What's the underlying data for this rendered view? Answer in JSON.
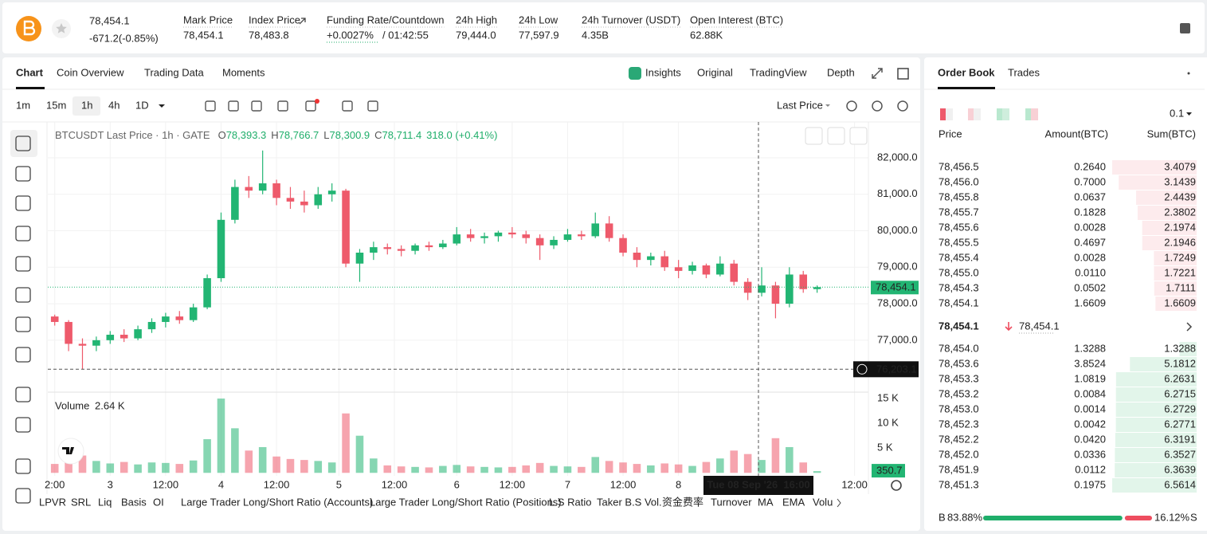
{
  "header": {
    "price": "78,454.1",
    "change": "-671.2(-0.85%)",
    "stats": [
      {
        "label": "Mark Price",
        "value": "78,454.1"
      },
      {
        "label": "Index Price",
        "value": "78,483.8"
      },
      {
        "label": "Funding Rate/Countdown",
        "value": "+0.0027%",
        "value2": "/ 01:42:55"
      },
      {
        "label": "24h High",
        "value": "79,444.0"
      },
      {
        "label": "24h Low",
        "value": "77,597.9"
      },
      {
        "label": "24h Turnover (USDT)",
        "value": "4.35B"
      },
      {
        "label": "Open Interest (BTC)",
        "value": "62.88K"
      }
    ]
  },
  "tabs": [
    "Chart",
    "Coin Overview",
    "Trading Data",
    "Moments"
  ],
  "view_tabs": [
    "Insights",
    "Original",
    "TradingView",
    "Depth"
  ],
  "intervals": [
    "1m",
    "15m",
    "1h",
    "4h",
    "1D"
  ],
  "price_type": "Last Price",
  "legend": {
    "title": "BTCUSDT Last Price · 1h · GATE",
    "o_label": "O",
    "o": "78,393.3",
    "h_label": "H",
    "h": "78,766.7",
    "l_label": "L",
    "l": "78,300.9",
    "c_label": "C",
    "c": "78,711.4",
    "change": "318.0 (+0.41%)"
  },
  "chart_data": {
    "type": "candlestick",
    "xlim": [
      -0.5,
      58.7
    ],
    "xticks": [
      {
        "value": 0,
        "label": "2:00"
      },
      {
        "value": 4,
        "label": "3"
      },
      {
        "value": 8,
        "label": "12:00"
      },
      {
        "value": 12,
        "label": "4"
      },
      {
        "value": 16,
        "label": "12:00"
      },
      {
        "value": 20.5,
        "label": "5"
      },
      {
        "value": 24.5,
        "label": "12:00"
      },
      {
        "value": 29,
        "label": "6"
      },
      {
        "value": 33,
        "label": "12:00"
      },
      {
        "value": 37,
        "label": "7"
      },
      {
        "value": 41,
        "label": "12:00"
      },
      {
        "value": 45,
        "label": "8"
      },
      {
        "value": 57.7,
        "label": "12:00"
      }
    ],
    "ylim": [
      75620,
      82830
    ],
    "yticks": [
      {
        "value": 77000,
        "label": "77,000.0"
      },
      {
        "value": 78000,
        "label": "78,000.0"
      },
      {
        "value": 79000,
        "label": "79,000.0"
      },
      {
        "value": 80000,
        "label": "80,000.0"
      },
      {
        "value": 81000,
        "label": "81,000.0"
      },
      {
        "value": 82000,
        "label": "82,000.0"
      }
    ],
    "open": [
      77650,
      77500,
      76900,
      76850,
      77000,
      77150,
      77050,
      77300,
      77500,
      77650,
      77550,
      77900,
      78700,
      80300,
      81200,
      81100,
      81300,
      80900,
      80800,
      80700,
      81000,
      81100,
      79100,
      79400,
      79550,
      79500,
      79450,
      79600,
      79550,
      79650,
      79900,
      79800,
      79850,
      79950,
      79900,
      79800,
      79600,
      79750,
      79900,
      79850,
      80200,
      79800,
      79400,
      79200,
      79300,
      79000,
      78900,
      79050,
      78800,
      79100,
      78600,
      78300,
      78500,
      78000,
      78800,
      78400
    ],
    "high": [
      77700,
      77550,
      77050,
      77100,
      77250,
      77300,
      77400,
      77600,
      77750,
      77800,
      78000,
      78800,
      80500,
      81400,
      81500,
      82200,
      81400,
      81200,
      81100,
      81200,
      81300,
      81150,
      79500,
      79700,
      79650,
      79600,
      79650,
      79700,
      79750,
      80100,
      80050,
      79950,
      80000,
      80100,
      80000,
      79900,
      79850,
      80050,
      80000,
      80500,
      80400,
      79900,
      79550,
      79400,
      79450,
      79200,
      79150,
      79100,
      79300,
      79200,
      78700,
      79000,
      78600,
      79000,
      78900,
      78500
    ],
    "low": [
      77400,
      76700,
      76203,
      76700,
      76900,
      76950,
      77000,
      77200,
      77350,
      77450,
      77500,
      77850,
      78600,
      80200,
      80900,
      81000,
      80700,
      80600,
      80500,
      80600,
      80800,
      79000,
      78600,
      79200,
      79350,
      79300,
      79350,
      79450,
      79500,
      79600,
      79700,
      79650,
      79700,
      79800,
      79650,
      79200,
      79500,
      79700,
      79750,
      79800,
      79700,
      79300,
      79000,
      79050,
      78900,
      78700,
      78800,
      78700,
      78750,
      78500,
      78100,
      78200,
      77600,
      77900,
      78300,
      78300
    ],
    "close": [
      77500,
      76900,
      76850,
      77000,
      77150,
      77050,
      77300,
      77500,
      77650,
      77550,
      77900,
      78700,
      80300,
      81200,
      81100,
      81300,
      80900,
      80800,
      80700,
      81000,
      81100,
      79100,
      79400,
      79550,
      79500,
      79450,
      79600,
      79550,
      79650,
      79900,
      79800,
      79850,
      79950,
      79900,
      79800,
      79600,
      79750,
      79900,
      79850,
      80200,
      79800,
      79400,
      79200,
      79300,
      79000,
      78900,
      79050,
      78800,
      79100,
      78600,
      78300,
      78500,
      78000,
      78800,
      78400,
      78454.1
    ],
    "up_color": "#22b573",
    "down_color": "#ee5a6b",
    "last_price": {
      "value": 78454.1,
      "label": "78,454.1"
    },
    "crosshair_price": {
      "value": 76203.1,
      "label": "76,203.1"
    },
    "crosshair_time": "Tue 08 Sep '26  16:00",
    "volume": {
      "title": "Volume",
      "current": "2.64 K",
      "ylim": [
        -600,
        16300
      ],
      "yticks": [
        {
          "value": 5000,
          "label": "5 K"
        },
        {
          "value": 10000,
          "label": "10 K"
        },
        {
          "value": 15000,
          "label": "15 K"
        }
      ],
      "values": [
        1800,
        2600,
        3500,
        2400,
        1900,
        2200,
        1700,
        2100,
        2000,
        1800,
        2500,
        6800,
        15000,
        9000,
        4500,
        5200,
        3300,
        2800,
        2600,
        2400,
        2100,
        12000,
        7500,
        2900,
        1500,
        1300,
        1200,
        1100,
        1400,
        1600,
        1300,
        1200,
        1100,
        1200,
        1500,
        2000,
        1400,
        1300,
        1200,
        3200,
        2400,
        2100,
        1800,
        1500,
        1900,
        1700,
        1400,
        2200,
        2900,
        4500,
        3800,
        2600,
        7000,
        5200,
        2100,
        350.7
      ]
    }
  },
  "indicators": [
    "LPVR",
    "SRL",
    "Liq",
    "Basis",
    "OI",
    "Large Trader Long/Short Ratio (Accounts)",
    "Large Trader Long/Short Ratio (Positions)",
    "L.S Ratio",
    "Taker B.S Vol.",
    "资金费率",
    "Turnover",
    "MA",
    "EMA",
    "Volu"
  ],
  "order_book": {
    "tabs": [
      "Order Book",
      "Trades"
    ],
    "precision": "0.1",
    "columns": [
      "Price",
      "Amount(BTC)",
      "Sum(BTC)"
    ],
    "asks": [
      [
        "78,456.5",
        "0.2640",
        3.4079
      ],
      [
        "78,456.0",
        "0.7000",
        3.1439
      ],
      [
        "78,455.8",
        "0.0637",
        2.4439
      ],
      [
        "78,455.7",
        "0.1828",
        2.3802
      ],
      [
        "78,455.6",
        "0.0028",
        2.1974
      ],
      [
        "78,455.5",
        "0.4697",
        2.1946
      ],
      [
        "78,455.4",
        "0.0028",
        1.7249
      ],
      [
        "78,455.0",
        "0.0110",
        1.7221
      ],
      [
        "78,454.3",
        "0.0502",
        1.7111
      ],
      [
        "78,454.1",
        "1.6609",
        1.6609
      ]
    ],
    "mid_price": "78,454.1",
    "mark_price": "78,454.1",
    "bids": [
      [
        "78,454.0",
        "1.3288",
        1.3288
      ],
      [
        "78,453.6",
        "3.8524",
        5.1812
      ],
      [
        "78,453.3",
        "1.0819",
        6.2631
      ],
      [
        "78,453.2",
        "0.0084",
        6.2715
      ],
      [
        "78,453.0",
        "0.0014",
        6.2729
      ],
      [
        "78,452.3",
        "0.0042",
        6.2771
      ],
      [
        "78,452.2",
        "0.0420",
        6.3191
      ],
      [
        "78,452.0",
        "0.0336",
        6.3527
      ],
      [
        "78,451.9",
        "0.0112",
        6.3639
      ],
      [
        "78,451.3",
        "0.1975",
        6.5614
      ]
    ],
    "buy_label": "B",
    "buy_ratio": {
      "value": 83.88,
      "label": "83.88%"
    },
    "sell_ratio": {
      "value": 16.12,
      "label": "16.12%"
    },
    "sell_label": "S"
  }
}
